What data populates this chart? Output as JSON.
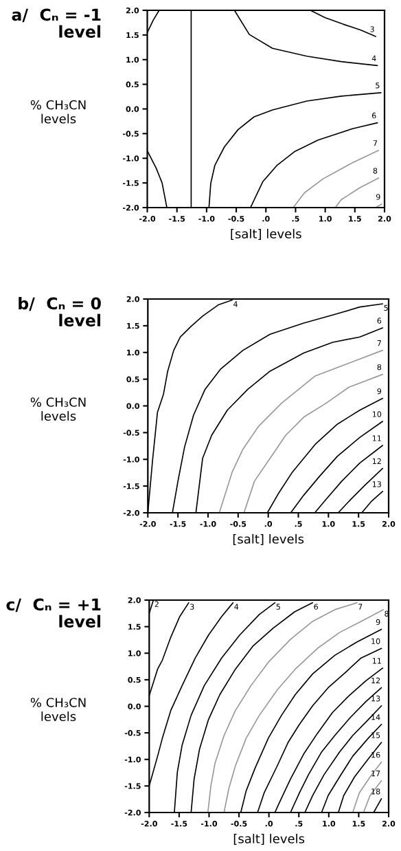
{
  "chart_data": [
    {
      "type": "line",
      "title": "a/  Cₙ = -1\nlevel",
      "xlabel": "[salt] levels",
      "ylabel": "% CH₃CN\nlevels",
      "xlim": [
        -2.0,
        2.0
      ],
      "ylim": [
        -2.0,
        2.0
      ],
      "xticks": [
        {
          "value": -2.0,
          "label": "-2.0"
        },
        {
          "value": -1.5,
          "label": "-1.5"
        },
        {
          "value": -1.0,
          "label": "-1.0"
        },
        {
          "value": -0.5,
          "label": "-0.5"
        },
        {
          "value": 0,
          "label": ".0"
        },
        {
          "value": 0.5,
          "label": ".5"
        },
        {
          "value": 1.0,
          "label": "1.0"
        },
        {
          "value": 1.5,
          "label": "1.5"
        },
        {
          "value": 2.0,
          "label": "2.0"
        }
      ],
      "yticks": [
        {
          "value": 2.0,
          "label": "2.0"
        },
        {
          "value": 1.5,
          "label": "1.5"
        },
        {
          "value": 1.0,
          "label": "1.0"
        },
        {
          "value": 0.5,
          "label": "0.5"
        },
        {
          "value": 0.0,
          "label": "0.0"
        },
        {
          "value": -0.5,
          "label": "-0.5"
        },
        {
          "value": -1.0,
          "label": "-1.0"
        },
        {
          "value": -1.5,
          "label": "-1.5"
        },
        {
          "value": -2.0,
          "label": "-2.0"
        }
      ],
      "series": [
        {
          "color": "#000000",
          "x": [
            -2.0,
            -1.9,
            -1.8
          ],
          "values": [
            1.55,
            1.8,
            2.0
          ]
        },
        {
          "color": "#000000",
          "x": [
            -2.0,
            -1.85,
            -1.75,
            -1.67
          ],
          "values": [
            -0.85,
            -1.2,
            -1.5,
            -2.0
          ]
        },
        {
          "color": "#000000",
          "x": [
            -1.26,
            -1.26
          ],
          "values": [
            -2.0,
            2.0
          ]
        },
        {
          "name": "3",
          "color": "#000000",
          "x": [
            1.85,
            1.6,
            1.3,
            1.0,
            0.75
          ],
          "values": [
            1.47,
            1.6,
            1.72,
            1.85,
            2.0
          ]
        },
        {
          "name": "4",
          "color": "#000000",
          "x": [
            1.88,
            1.27,
            0.69,
            0.11,
            -0.28,
            -0.53
          ],
          "values": [
            0.88,
            0.96,
            1.07,
            1.23,
            1.51,
            2.0
          ]
        },
        {
          "name": "5",
          "color": "#000000",
          "x": [
            1.94,
            1.27,
            0.69,
            0.11,
            -0.2,
            -0.47,
            -0.7,
            -0.86,
            -0.93,
            -0.96
          ],
          "values": [
            0.33,
            0.26,
            0.16,
            -0.02,
            -0.16,
            -0.42,
            -0.77,
            -1.14,
            -1.51,
            -2.0
          ]
        },
        {
          "name": "6",
          "color": "#000000",
          "x": [
            1.88,
            1.46,
            0.88,
            0.49,
            0.19,
            -0.05,
            -0.26
          ],
          "values": [
            -0.28,
            -0.4,
            -0.63,
            -0.86,
            -1.14,
            -1.47,
            -2.0
          ]
        },
        {
          "name": "7",
          "color": "#999999",
          "x": [
            1.9,
            1.46,
            0.96,
            0.65,
            0.46
          ],
          "values": [
            -0.84,
            -1.09,
            -1.42,
            -1.7,
            -2.0
          ]
        },
        {
          "name": "8",
          "color": "#999999",
          "x": [
            1.9,
            1.58,
            1.27,
            1.17
          ],
          "values": [
            -1.4,
            -1.6,
            -1.84,
            -2.0
          ]
        },
        {
          "name": "9",
          "color": "#999999",
          "x": [
            1.95,
            1.85
          ],
          "values": [
            -1.93,
            -2.0
          ]
        }
      ]
    },
    {
      "type": "line",
      "title": "b/  Cₙ = 0\nlevel",
      "xlabel": "[salt] levels",
      "ylabel": "% CH₃CN\nlevels",
      "xlim": [
        -2.0,
        2.0
      ],
      "ylim": [
        -2.0,
        2.0
      ],
      "xticks": [
        {
          "value": -2.0,
          "label": "-2.0"
        },
        {
          "value": -1.5,
          "label": "-1.5"
        },
        {
          "value": -1.0,
          "label": "-1.0"
        },
        {
          "value": -0.5,
          "label": "-0.5"
        },
        {
          "value": 0,
          "label": ".0"
        },
        {
          "value": 0.5,
          "label": ".5"
        },
        {
          "value": 1.0,
          "label": "1.0"
        },
        {
          "value": 1.5,
          "label": "1.5"
        },
        {
          "value": 2.0,
          "label": "2.0"
        }
      ],
      "yticks": [
        {
          "value": 2.0,
          "label": "2.0"
        },
        {
          "value": 1.5,
          "label": "1.5"
        },
        {
          "value": 1.0,
          "label": "1.0"
        },
        {
          "value": 0.5,
          "label": "0.5"
        },
        {
          "value": 0.0,
          "label": "0.0"
        },
        {
          "value": -0.5,
          "label": "-0.5"
        },
        {
          "value": -1.0,
          "label": "-1.0"
        },
        {
          "value": -1.5,
          "label": "-1.5"
        },
        {
          "value": -2.0,
          "label": "-2.0"
        }
      ],
      "series": [
        {
          "name": "4",
          "color": "#000000",
          "x": [
            -0.6,
            -0.83,
            -1.09,
            -1.28,
            -1.46,
            -1.57,
            -1.67,
            -1.74,
            -1.84,
            -1.92,
            -2.0
          ],
          "values": [
            1.98,
            1.89,
            1.68,
            1.49,
            1.29,
            1.04,
            0.65,
            0.22,
            -0.12,
            -1.0,
            -2.0
          ]
        },
        {
          "name": "5",
          "color": "#000000",
          "x": [
            1.9,
            1.52,
            1.07,
            0.59,
            0.03,
            -0.42,
            -0.79,
            -1.05,
            -1.24,
            -1.39,
            -1.5,
            -1.59
          ],
          "values": [
            1.91,
            1.85,
            1.7,
            1.55,
            1.34,
            1.04,
            0.69,
            0.31,
            -0.17,
            -0.77,
            -1.41,
            -1.99
          ]
        },
        {
          "name": "6",
          "color": "#000000",
          "x": [
            1.9,
            1.52,
            1.07,
            0.59,
            0.03,
            -0.34,
            -0.68,
            -0.94,
            -1.09,
            -1.2
          ],
          "values": [
            1.46,
            1.29,
            1.19,
            0.99,
            0.65,
            0.31,
            -0.08,
            -0.55,
            -0.98,
            -1.99
          ]
        },
        {
          "name": "7",
          "color": "#999999",
          "x": [
            1.9,
            1.34,
            0.78,
            0.22,
            -0.16,
            -0.42,
            -0.6,
            -0.81
          ],
          "values": [
            1.04,
            0.8,
            0.56,
            0.05,
            -0.38,
            -0.81,
            -1.24,
            -1.99
          ]
        },
        {
          "name": "8",
          "color": "#999999",
          "x": [
            1.9,
            1.34,
            0.96,
            0.59,
            0.29,
            0.03,
            -0.23,
            -0.4
          ],
          "values": [
            0.59,
            0.35,
            0.05,
            -0.21,
            -0.55,
            -0.98,
            -1.41,
            -1.99
          ]
        },
        {
          "name": "9",
          "color": "#000000",
          "x": [
            1.9,
            1.52,
            1.15,
            0.78,
            0.4,
            0.18,
            -0.01
          ],
          "values": [
            0.14,
            -0.08,
            -0.34,
            -0.72,
            -1.24,
            -1.62,
            -1.99
          ]
        },
        {
          "name": "10",
          "color": "#000000",
          "x": [
            1.9,
            1.52,
            1.15,
            0.85,
            0.59,
            0.38
          ],
          "values": [
            -0.29,
            -0.59,
            -0.94,
            -1.32,
            -1.67,
            -1.99
          ]
        },
        {
          "name": "11",
          "color": "#000000",
          "x": [
            1.9,
            1.52,
            1.22,
            0.96,
            0.78
          ],
          "values": [
            -0.74,
            -1.07,
            -1.41,
            -1.75,
            -1.99
          ]
        },
        {
          "name": "12",
          "color": "#000000",
          "x": [
            1.9,
            1.6,
            1.37,
            1.17
          ],
          "values": [
            -1.17,
            -1.49,
            -1.75,
            -1.99
          ]
        },
        {
          "name": "13",
          "color": "#000000",
          "x": [
            1.9,
            1.71,
            1.56
          ],
          "values": [
            -1.6,
            -1.79,
            -1.99
          ]
        }
      ]
    },
    {
      "type": "line",
      "title": "c/  Cₙ = +1\nlevel",
      "xlabel": "[salt] levels",
      "ylabel": "% CH₃CN\nlevels",
      "xlim": [
        -2.0,
        2.0
      ],
      "ylim": [
        -2.0,
        2.0
      ],
      "xticks": [
        {
          "value": -2.0,
          "label": "-2.0"
        },
        {
          "value": -1.5,
          "label": "-1.5"
        },
        {
          "value": -1.0,
          "label": "-1.0"
        },
        {
          "value": -0.5,
          "label": "-0.5"
        },
        {
          "value": 0,
          "label": ".0"
        },
        {
          "value": 0.5,
          "label": ".5"
        },
        {
          "value": 1.0,
          "label": "1.0"
        },
        {
          "value": 1.5,
          "label": "1.5"
        },
        {
          "value": 2.0,
          "label": "2.0"
        }
      ],
      "yticks": [
        {
          "value": 2.0,
          "label": "2.0"
        },
        {
          "value": 1.5,
          "label": "1.5"
        },
        {
          "value": 1.0,
          "label": "1.0"
        },
        {
          "value": 0.5,
          "label": "0.5"
        },
        {
          "value": 0.0,
          "label": "0.0"
        },
        {
          "value": -0.5,
          "label": "-0.5"
        },
        {
          "value": -1.0,
          "label": "-1.0"
        },
        {
          "value": -1.5,
          "label": "-1.5"
        },
        {
          "value": -2.0,
          "label": "-2.0"
        }
      ],
      "series": [
        {
          "name": "2",
          "color": "#000000",
          "x": [
            -1.93,
            -2.0
          ],
          "values": [
            2.0,
            1.75
          ]
        },
        {
          "name": "3",
          "color": "#000000",
          "x": [
            -1.34,
            -1.49,
            -1.64,
            -1.78,
            -1.86,
            -2.0
          ],
          "values": [
            1.95,
            1.69,
            1.3,
            0.87,
            0.7,
            0.2
          ]
        },
        {
          "name": "4",
          "color": "#000000",
          "x": [
            -0.6,
            -0.79,
            -1.01,
            -1.23,
            -1.45,
            -1.64,
            -1.78,
            -1.86,
            -2.0
          ],
          "values": [
            1.95,
            1.69,
            1.34,
            0.91,
            0.39,
            -0.08,
            -0.6,
            -0.94,
            -1.5
          ]
        },
        {
          "name": "5",
          "color": "#000000",
          "x": [
            0.1,
            -0.16,
            -0.49,
            -0.79,
            -1.08,
            -1.3,
            -1.45,
            -1.53,
            -1.58
          ],
          "values": [
            1.95,
            1.73,
            1.34,
            0.91,
            0.39,
            -0.17,
            -0.73,
            -1.24,
            -2.0
          ]
        },
        {
          "name": "6",
          "color": "#000000",
          "x": [
            0.73,
            0.43,
            0.07,
            -0.27,
            -0.56,
            -0.82,
            -1.01,
            -1.16,
            -1.25,
            -1.3
          ],
          "values": [
            1.95,
            1.78,
            1.47,
            1.13,
            0.7,
            0.22,
            -0.25,
            -0.81,
            -1.37,
            -2.0
          ]
        },
        {
          "name": "7",
          "color": "#999999",
          "x": [
            1.47,
            1.1,
            0.73,
            0.36,
            -0.01,
            -0.3,
            -0.56,
            -0.75,
            -0.9,
            -0.97,
            -1.02
          ],
          "values": [
            1.95,
            1.82,
            1.6,
            1.26,
            0.83,
            0.39,
            -0.08,
            -0.55,
            -1.07,
            -1.5,
            -2.0
          ]
        },
        {
          "name": "8",
          "color": "#999999",
          "x": [
            1.91,
            1.54,
            1.18,
            0.81,
            0.44,
            0.14,
            -0.16,
            -0.38,
            -0.56,
            -0.67,
            -0.75
          ],
          "values": [
            1.82,
            1.6,
            1.39,
            1.09,
            0.7,
            0.31,
            -0.17,
            -0.6,
            -1.12,
            -1.55,
            -2.0
          ]
        },
        {
          "name": "9",
          "color": "#000000",
          "x": [
            1.88,
            1.47,
            1.1,
            0.73,
            0.44,
            0.21,
            -0.01,
            -0.23,
            -0.38,
            -0.47
          ],
          "values": [
            1.45,
            1.21,
            0.96,
            0.61,
            0.22,
            -0.17,
            -0.6,
            -1.16,
            -1.59,
            -2.0
          ]
        },
        {
          "name": "10",
          "color": "#000000",
          "x": [
            1.88,
            1.54,
            1.29,
            0.99,
            0.73,
            0.51,
            0.32,
            0.14,
            -0.08,
            -0.19
          ],
          "values": [
            1.09,
            0.91,
            0.65,
            0.35,
            0.01,
            -0.34,
            -0.68,
            -1.12,
            -1.63,
            -2.0
          ]
        },
        {
          "name": "11",
          "color": "#000000",
          "x": [
            1.9,
            1.62,
            1.32,
            1.06,
            0.81,
            0.58,
            0.36,
            0.16,
            0.1
          ],
          "values": [
            0.72,
            0.48,
            0.18,
            -0.12,
            -0.51,
            -0.9,
            -1.37,
            -1.85,
            -2.0
          ]
        },
        {
          "name": "12",
          "color": "#000000",
          "x": [
            1.88,
            1.62,
            1.36,
            1.1,
            0.88,
            0.66,
            0.51,
            0.36
          ],
          "values": [
            0.35,
            0.09,
            -0.21,
            -0.55,
            -0.86,
            -1.29,
            -1.63,
            -2.0
          ]
        },
        {
          "name": "13",
          "color": "#000000",
          "x": [
            1.88,
            1.66,
            1.4,
            1.18,
            0.92,
            0.73,
            0.6
          ],
          "values": [
            0.01,
            -0.25,
            -0.55,
            -0.86,
            -1.29,
            -1.68,
            -2.0
          ]
        },
        {
          "name": "14",
          "color": "#000000",
          "x": [
            1.88,
            1.66,
            1.4,
            1.18,
            0.99,
            0.88
          ],
          "values": [
            -0.34,
            -0.6,
            -0.94,
            -1.33,
            -1.68,
            -2.0
          ]
        },
        {
          "name": "15",
          "color": "#000000",
          "x": [
            1.88,
            1.66,
            1.43,
            1.25,
            1.16
          ],
          "values": [
            -0.68,
            -0.99,
            -1.33,
            -1.68,
            -2.0
          ]
        },
        {
          "name": "16",
          "color": "#999999",
          "x": [
            1.88,
            1.69,
            1.51,
            1.4
          ],
          "values": [
            -1.05,
            -1.33,
            -1.63,
            -2.0
          ]
        },
        {
          "name": "17",
          "color": "#999999",
          "x": [
            1.88,
            1.69,
            1.58
          ],
          "values": [
            -1.4,
            -1.68,
            -2.0
          ]
        },
        {
          "name": "18",
          "color": "#000000",
          "x": [
            1.88,
            1.75
          ],
          "values": [
            -1.74,
            -2.0
          ]
        }
      ]
    }
  ]
}
